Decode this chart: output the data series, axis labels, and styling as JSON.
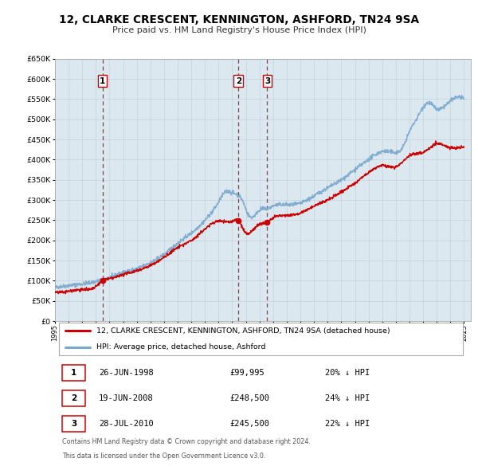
{
  "title": "12, CLARKE CRESCENT, KENNINGTON, ASHFORD, TN24 9SA",
  "subtitle": "Price paid vs. HM Land Registry's House Price Index (HPI)",
  "xlim": [
    1995.0,
    2025.5
  ],
  "ylim": [
    0,
    650000
  ],
  "yticks": [
    0,
    50000,
    100000,
    150000,
    200000,
    250000,
    300000,
    350000,
    400000,
    450000,
    500000,
    550000,
    600000,
    650000
  ],
  "ytick_labels": [
    "£0",
    "£50K",
    "£100K",
    "£150K",
    "£200K",
    "£250K",
    "£300K",
    "£350K",
    "£400K",
    "£450K",
    "£500K",
    "£550K",
    "£600K",
    "£650K"
  ],
  "xticks": [
    1995,
    1996,
    1997,
    1998,
    1999,
    2000,
    2001,
    2002,
    2003,
    2004,
    2005,
    2006,
    2007,
    2008,
    2009,
    2010,
    2011,
    2012,
    2013,
    2014,
    2015,
    2016,
    2017,
    2018,
    2019,
    2020,
    2021,
    2022,
    2023,
    2024,
    2025
  ],
  "grid_color": "#c8d4e0",
  "bg_color": "#dce8f0",
  "property_color": "#cc0000",
  "hpi_color": "#7aa8cc",
  "vline_color": "#cc0000",
  "sales": [
    {
      "label": "1",
      "date_x": 1998.48,
      "price": 99995
    },
    {
      "label": "2",
      "date_x": 2008.46,
      "price": 248500
    },
    {
      "label": "3",
      "date_x": 2010.57,
      "price": 245500
    }
  ],
  "legend_property": "12, CLARKE CRESCENT, KENNINGTON, ASHFORD, TN24 9SA (detached house)",
  "legend_hpi": "HPI: Average price, detached house, Ashford",
  "table_rows": [
    {
      "num": "1",
      "date": "26-JUN-1998",
      "price": "£99,995",
      "pct": "20% ↓ HPI"
    },
    {
      "num": "2",
      "date": "19-JUN-2008",
      "price": "£248,500",
      "pct": "24% ↓ HPI"
    },
    {
      "num": "3",
      "date": "28-JUL-2010",
      "price": "£245,500",
      "pct": "22% ↓ HPI"
    }
  ],
  "footnote1": "Contains HM Land Registry data © Crown copyright and database right 2024.",
  "footnote2": "This data is licensed under the Open Government Licence v3.0."
}
